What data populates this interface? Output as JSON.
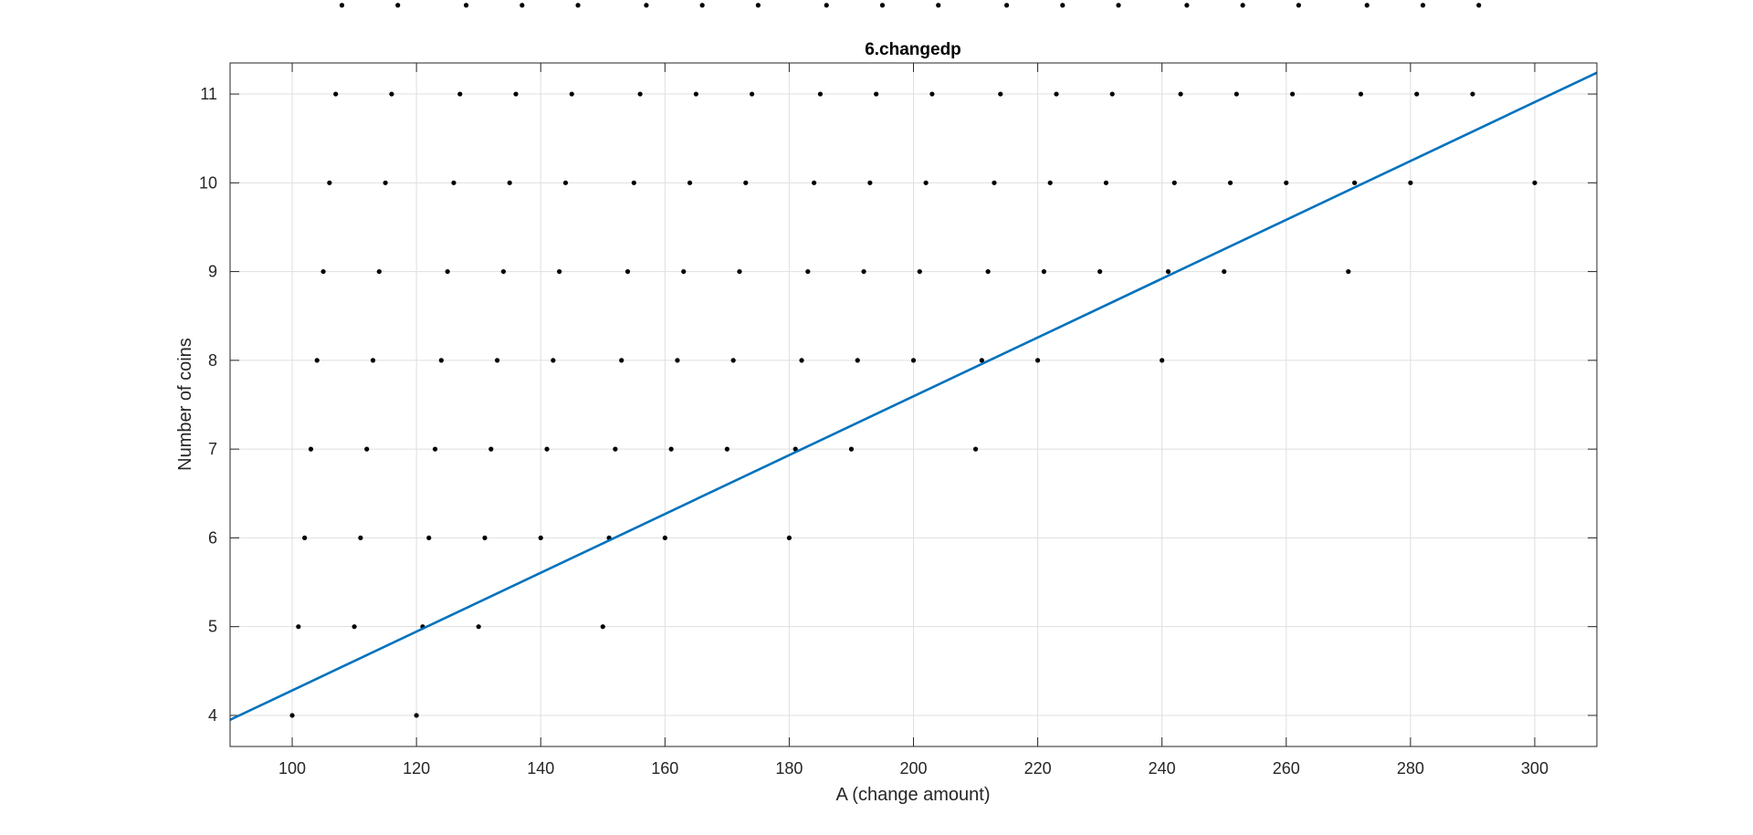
{
  "chart_data": {
    "type": "scatter",
    "title": "6.changedp",
    "xlabel": "A (change amount)",
    "ylabel": "Number of coins",
    "xlim": [
      90,
      310
    ],
    "ylim": [
      3.65,
      11.35
    ],
    "xticks": [
      100,
      120,
      140,
      160,
      180,
      200,
      220,
      240,
      260,
      280,
      300
    ],
    "yticks": [
      4,
      5,
      6,
      7,
      8,
      9,
      10,
      11
    ],
    "grid": true,
    "series": [
      {
        "kind": "points",
        "color": "#000000",
        "x_start": 100,
        "x_end": 300,
        "x_step": 1,
        "y_rule": "minimum coins with denominations 1, 10, 30 per A",
        "levels": [
          {
            "y": 4,
            "x_from": 100,
            "x_to": 120
          },
          {
            "y": 5,
            "x_from": 101,
            "x_to": 150
          },
          {
            "y": 6,
            "x_from": 123,
            "x_to": 180
          },
          {
            "y": 7,
            "x_from": 153,
            "x_to": 210
          },
          {
            "y": 8,
            "x_from": 183,
            "x_to": 240
          },
          {
            "y": 9,
            "x_from": 213,
            "x_to": 270
          },
          {
            "y": 10,
            "x_from": 243,
            "x_to": 300
          },
          {
            "y": 11,
            "x_from": 273,
            "x_to": 299
          }
        ]
      },
      {
        "kind": "line",
        "color": "#0072BD",
        "x": [
          90,
          310
        ],
        "y": [
          3.95,
          11.24
        ]
      }
    ]
  }
}
